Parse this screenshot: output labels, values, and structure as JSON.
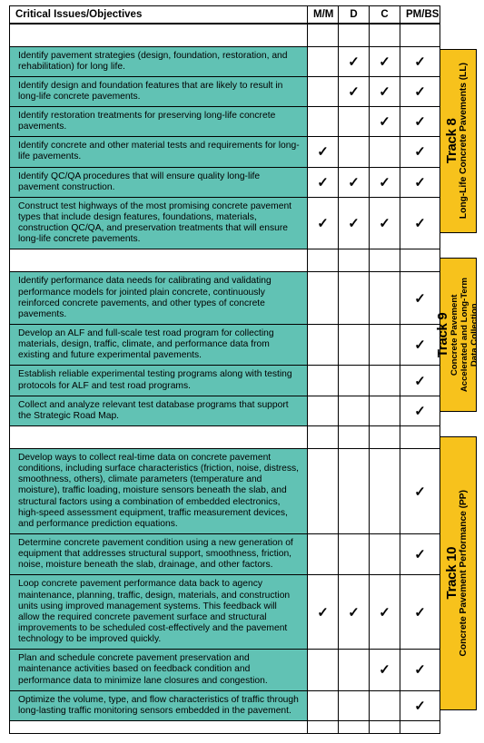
{
  "headers": {
    "issues": "Critical Issues/Objectives",
    "mm": "M/M",
    "d": "D",
    "c": "C",
    "pmbs": "PM/BS"
  },
  "checkmark": "✓",
  "tracks": [
    {
      "num": "Track 8",
      "name_lines": [
        "Long-Life Concrete Pavements (LL)"
      ],
      "tab_height": 203,
      "rows": [
        {
          "text": "Identify pavement strategies (design, foundation, restoration, and rehabilitation) for long life.",
          "checks": [
            false,
            true,
            true,
            true
          ]
        },
        {
          "text": "Identify design and foundation features that are likely to result in long-life concrete pavements.",
          "checks": [
            false,
            true,
            true,
            true
          ]
        },
        {
          "text": "Identify restoration treatments for preserving long-life concrete pavements.",
          "checks": [
            false,
            false,
            true,
            true
          ]
        },
        {
          "text": "Identify concrete and other material tests and requirements for long-life pavements.",
          "checks": [
            true,
            false,
            false,
            true
          ]
        },
        {
          "text": "Identify QC/QA procedures that will ensure quality long-life pavement construction.",
          "checks": [
            true,
            true,
            true,
            true
          ]
        },
        {
          "text": "Construct test highways of the most promising concrete pavement types that include design features, foundations, materials, construction QC/QA, and preservation treatments that will ensure long-life concrete pavements.",
          "checks": [
            true,
            true,
            true,
            true
          ]
        }
      ]
    },
    {
      "num": "Track 9",
      "name_lines": [
        "Concrete Pavement",
        "Accelerated and Long-Term",
        "Data Collection"
      ],
      "tab_height": 170,
      "rows": [
        {
          "text": "Identify performance data needs for calibrating and validating performance models for jointed plain concrete, continuously reinforced concrete pavements, and other types of concrete pavements.",
          "checks": [
            false,
            false,
            false,
            true
          ]
        },
        {
          "text": "Develop an ALF and full-scale test road program for collecting materials, design, traffic, climate, and performance data from existing and future experimental pavements.",
          "checks": [
            false,
            false,
            false,
            true
          ]
        },
        {
          "text": "Establish reliable experimental testing programs along with testing protocols for ALF and test road programs.",
          "checks": [
            false,
            false,
            false,
            true
          ]
        },
        {
          "text": "Collect and analyze relevant test database programs that support the Strategic Road Map.",
          "checks": [
            false,
            false,
            false,
            true
          ]
        }
      ]
    },
    {
      "num": "Track 10",
      "name_lines": [
        "Concrete Pavement Performance (PP)"
      ],
      "tab_height": 302,
      "rows": [
        {
          "text": "Develop ways to collect real-time data on concrete pavement conditions, including surface characteristics (friction, noise, distress, smoothness, others), climate parameters (temperature and moisture), traffic loading, moisture sensors beneath the slab, and structural factors using a combination of embedded electronics, high-speed assessment equipment, traffic measurement devices, and performance prediction equations.",
          "checks": [
            false,
            false,
            false,
            true
          ]
        },
        {
          "text": "Determine concrete pavement condition using a new generation of equipment that addresses structural support, smoothness, friction, noise, moisture beneath the slab, drainage, and other factors.",
          "checks": [
            false,
            false,
            false,
            true
          ]
        },
        {
          "text": "Loop concrete pavement performance data back to agency maintenance, planning, traffic, design, materials, and construction units using improved management systems. This feedback will allow the required concrete pavement surface and structural improvements to be scheduled cost-effectively and the pavement technology to be improved quickly.",
          "checks": [
            true,
            true,
            true,
            true
          ]
        },
        {
          "text": "Plan and schedule concrete pavement preservation and maintenance activities based on feedback condition and performance data to minimize lane closures and congestion.",
          "checks": [
            false,
            false,
            true,
            true
          ]
        },
        {
          "text": "Optimize the volume, type, and flow characteristics of traffic through long-lasting traffic monitoring sensors embedded in the pavement.",
          "checks": [
            false,
            false,
            false,
            true
          ]
        }
      ]
    }
  ]
}
